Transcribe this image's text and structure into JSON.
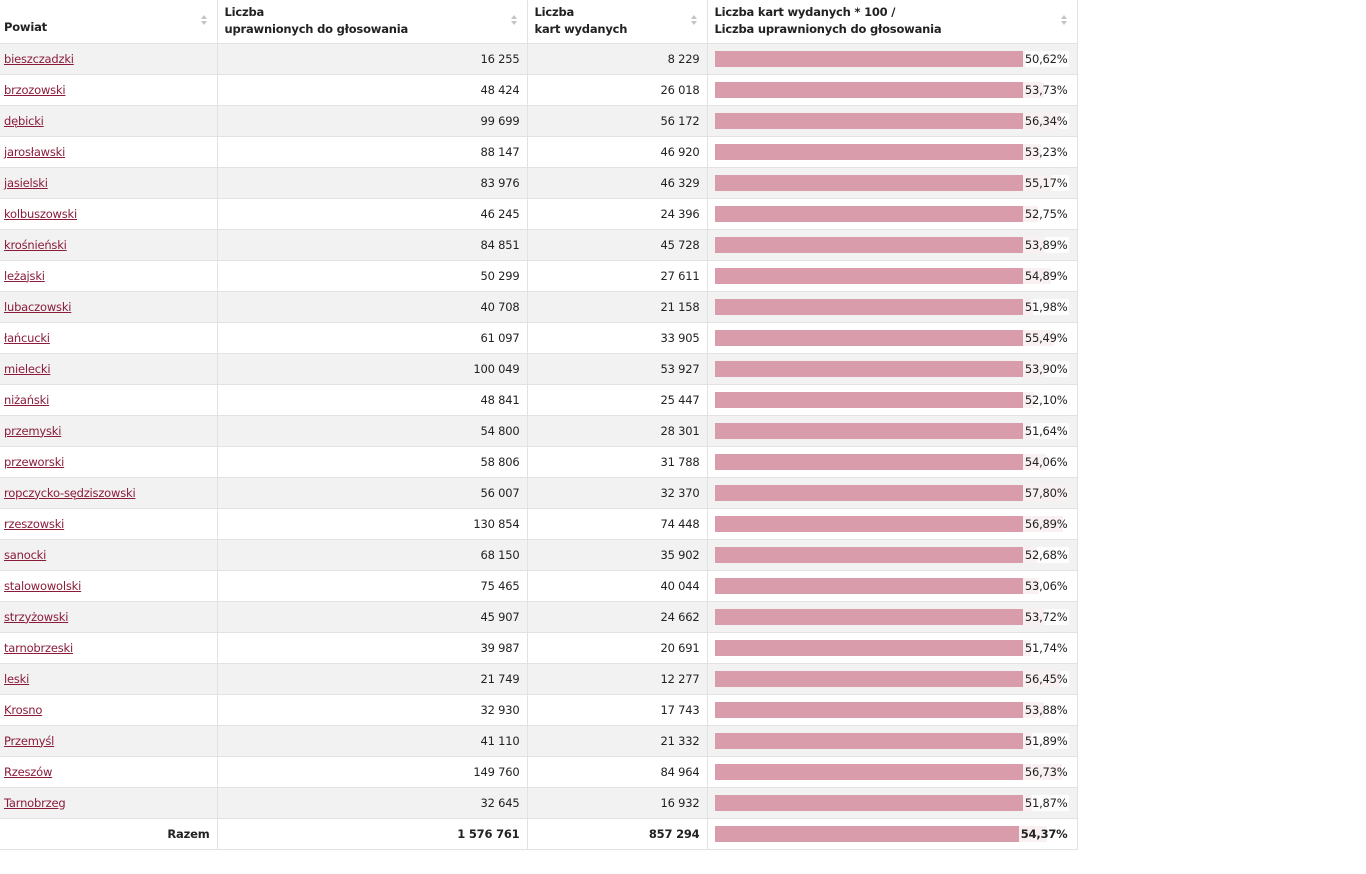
{
  "headers": {
    "col1": "Powiat",
    "col2_line1": "Liczba",
    "col2_line2": "uprawnionych do głosowania",
    "col3_line1": "Liczba",
    "col3_line2": "kart wydanych",
    "col4_line1": "Liczba kart wydanych * 100 /",
    "col4_line2": "Liczba uprawnionych do głosowania"
  },
  "colors": {
    "link": "#8a1c3a",
    "bar": "#d89caa",
    "row_alt": "#f2f2f2"
  },
  "bar_scale_max_pct": 57.8,
  "rows": [
    {
      "name": "bieszczadzki",
      "eligible": "16 255",
      "issued": "8 229",
      "pct": "50,62%",
      "pct_value": 50.62
    },
    {
      "name": "brzozowski",
      "eligible": "48 424",
      "issued": "26 018",
      "pct": "53,73%",
      "pct_value": 53.73
    },
    {
      "name": "dębicki",
      "eligible": "99 699",
      "issued": "56 172",
      "pct": "56,34%",
      "pct_value": 56.34
    },
    {
      "name": "jarosławski",
      "eligible": "88 147",
      "issued": "46 920",
      "pct": "53,23%",
      "pct_value": 53.23
    },
    {
      "name": "jasielski",
      "eligible": "83 976",
      "issued": "46 329",
      "pct": "55,17%",
      "pct_value": 55.17
    },
    {
      "name": "kolbuszowski",
      "eligible": "46 245",
      "issued": "24 396",
      "pct": "52,75%",
      "pct_value": 52.75
    },
    {
      "name": "krośnieński",
      "eligible": "84 851",
      "issued": "45 728",
      "pct": "53,89%",
      "pct_value": 53.89
    },
    {
      "name": "leżajski",
      "eligible": "50 299",
      "issued": "27 611",
      "pct": "54,89%",
      "pct_value": 54.89
    },
    {
      "name": "lubaczowski",
      "eligible": "40 708",
      "issued": "21 158",
      "pct": "51,98%",
      "pct_value": 51.98
    },
    {
      "name": "łańcucki",
      "eligible": "61 097",
      "issued": "33 905",
      "pct": "55,49%",
      "pct_value": 55.49
    },
    {
      "name": "mielecki",
      "eligible": "100 049",
      "issued": "53 927",
      "pct": "53,90%",
      "pct_value": 53.9
    },
    {
      "name": "niżański",
      "eligible": "48 841",
      "issued": "25 447",
      "pct": "52,10%",
      "pct_value": 52.1
    },
    {
      "name": "przemyski",
      "eligible": "54 800",
      "issued": "28 301",
      "pct": "51,64%",
      "pct_value": 51.64
    },
    {
      "name": "przeworski",
      "eligible": "58 806",
      "issued": "31 788",
      "pct": "54,06%",
      "pct_value": 54.06
    },
    {
      "name": "ropczycko-sędziszowski",
      "eligible": "56 007",
      "issued": "32 370",
      "pct": "57,80%",
      "pct_value": 57.8
    },
    {
      "name": "rzeszowski",
      "eligible": "130 854",
      "issued": "74 448",
      "pct": "56,89%",
      "pct_value": 56.89
    },
    {
      "name": "sanocki",
      "eligible": "68 150",
      "issued": "35 902",
      "pct": "52,68%",
      "pct_value": 52.68
    },
    {
      "name": "stalowowolski",
      "eligible": "75 465",
      "issued": "40 044",
      "pct": "53,06%",
      "pct_value": 53.06
    },
    {
      "name": "strzyżowski",
      "eligible": "45 907",
      "issued": "24 662",
      "pct": "53,72%",
      "pct_value": 53.72
    },
    {
      "name": "tarnobrzeski",
      "eligible": "39 987",
      "issued": "20 691",
      "pct": "51,74%",
      "pct_value": 51.74
    },
    {
      "name": "leski",
      "eligible": "21 749",
      "issued": "12 277",
      "pct": "56,45%",
      "pct_value": 56.45
    },
    {
      "name": "Krosno",
      "eligible": "32 930",
      "issued": "17 743",
      "pct": "53,88%",
      "pct_value": 53.88
    },
    {
      "name": "Przemyśl",
      "eligible": "41 110",
      "issued": "21 332",
      "pct": "51,89%",
      "pct_value": 51.89
    },
    {
      "name": "Rzeszów",
      "eligible": "149 760",
      "issued": "84 964",
      "pct": "56,73%",
      "pct_value": 56.73
    },
    {
      "name": "Tarnobrzeg",
      "eligible": "32 645",
      "issued": "16 932",
      "pct": "51,87%",
      "pct_value": 51.87
    }
  ],
  "total": {
    "label": "Razem",
    "eligible": "1 576 761",
    "issued": "857 294",
    "pct": "54,37%",
    "pct_value": 54.37
  }
}
